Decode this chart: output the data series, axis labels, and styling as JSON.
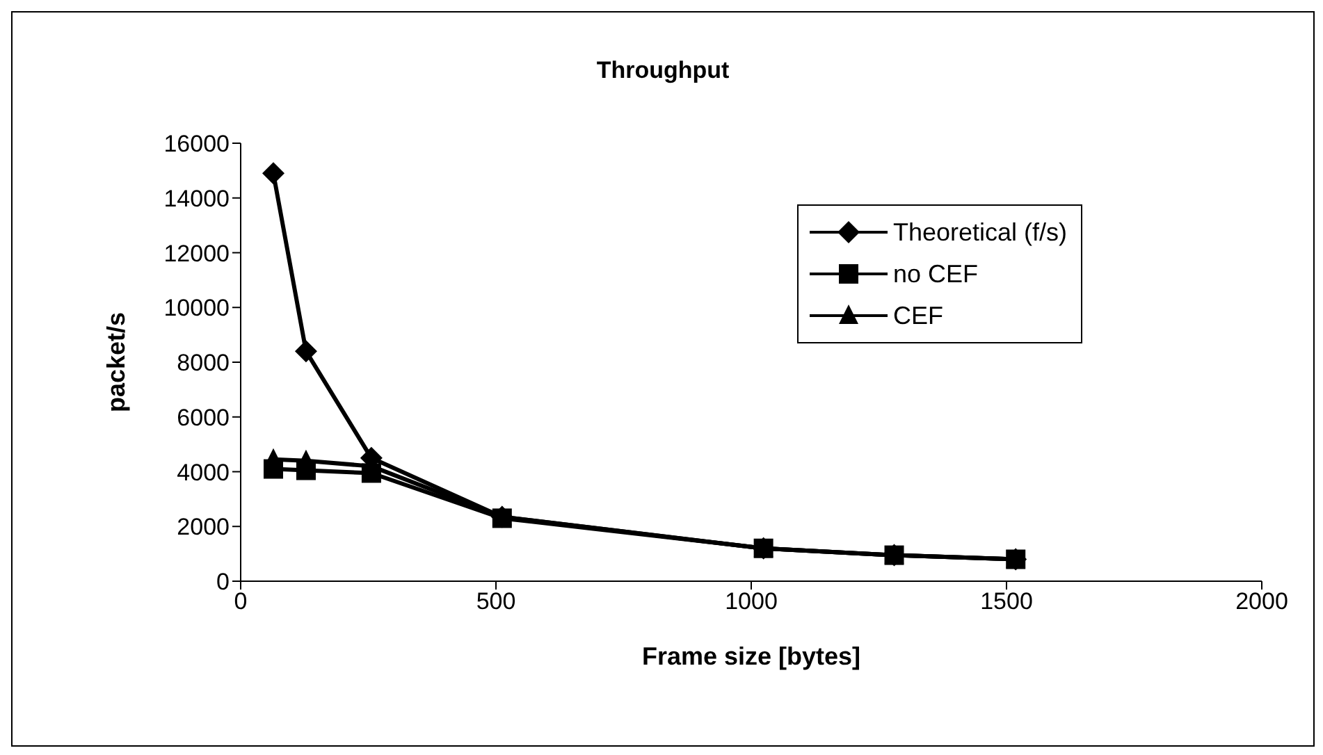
{
  "chart_data": {
    "type": "line",
    "title": "Throughput",
    "xlabel": "Frame size [bytes]",
    "ylabel": "packet/s",
    "x": [
      64,
      128,
      256,
      512,
      1024,
      1280,
      1518
    ],
    "series": [
      {
        "name": "Theoretical (f/s)",
        "color": "#000000",
        "marker": "diamond",
        "values": [
          14900,
          8400,
          4500,
          2350,
          1200,
          950,
          800
        ]
      },
      {
        "name": "no CEF",
        "color": "#000000",
        "marker": "square",
        "values": [
          4100,
          4050,
          3950,
          2300,
          1200,
          950,
          800
        ]
      },
      {
        "name": "CEF",
        "color": "#000000",
        "marker": "triangle",
        "values": [
          4450,
          4400,
          4200,
          2350,
          1200,
          950,
          800
        ]
      }
    ],
    "xlim": [
      0,
      2000
    ],
    "xticks": [
      0,
      500,
      1000,
      1500,
      2000
    ],
    "ylim": [
      0,
      16000
    ],
    "yticks": [
      0,
      2000,
      4000,
      6000,
      8000,
      10000,
      12000,
      14000,
      16000
    ],
    "grid": false,
    "legend": "top right",
    "line_style": "solid"
  }
}
